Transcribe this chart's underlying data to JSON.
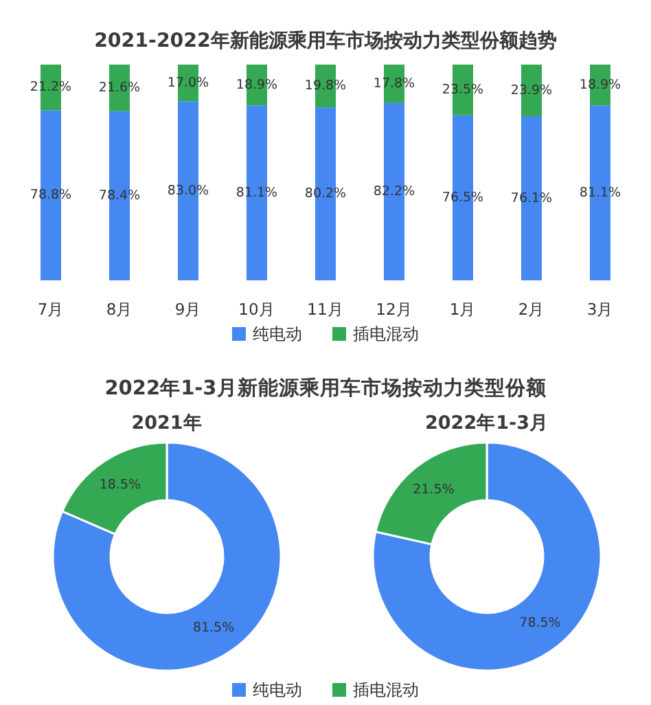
{
  "chart_data": [
    {
      "type": "bar",
      "title": "2021-2022年新能源乘用车市场按动力类型份额趋势",
      "categories": [
        "7月",
        "8月",
        "9月",
        "10月",
        "11月",
        "12月",
        "1月",
        "2月",
        "3月"
      ],
      "stacked": true,
      "ylim": [
        0,
        100
      ],
      "tick_labels": "x",
      "legend": "bottom",
      "series": [
        {
          "name": "纯电动",
          "color": "#4688f1",
          "values": [
            78.8,
            78.4,
            83.0,
            81.1,
            80.2,
            82.2,
            76.5,
            76.1,
            81.1
          ],
          "value_labels": [
            "78.8%",
            "78.4%",
            "83.0%",
            "81.1%",
            "80.2%",
            "82.2%",
            "76.5%",
            "76.1%",
            "81.1%"
          ]
        },
        {
          "name": "插电混动",
          "color": "#34a853",
          "values": [
            21.2,
            21.6,
            17.0,
            18.9,
            19.8,
            17.8,
            23.5,
            23.9,
            18.9
          ],
          "value_labels": [
            "21.2%",
            "21.6%",
            "17.0%",
            "18.9%",
            "19.8%",
            "17.8%",
            "23.5%",
            "23.9%",
            "18.9%"
          ]
        }
      ]
    },
    {
      "type": "donut",
      "title": "2022年1-3月新能源乘用车市场按动力类型份额",
      "categories": [
        "纯电动",
        "插电混动"
      ],
      "colors": [
        "#4688f1",
        "#34a853"
      ],
      "legend": "bottom",
      "series": [
        {
          "name": "2021年",
          "values": [
            81.5,
            18.5
          ],
          "value_labels": [
            "81.5%",
            "18.5%"
          ]
        },
        {
          "name": "2022年1-3月",
          "values": [
            78.5,
            21.5
          ],
          "value_labels": [
            "78.5%",
            "21.5%"
          ]
        }
      ]
    }
  ]
}
